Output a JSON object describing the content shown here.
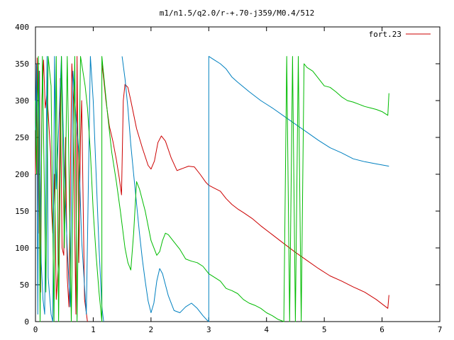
{
  "chart_data": {
    "type": "line",
    "title": "m1/n1.5/q2.0/r-+.70-j359/M0.4/512",
    "xlabel": "",
    "ylabel": "",
    "xlim": [
      0,
      7
    ],
    "ylim": [
      0,
      400
    ],
    "x_ticks": [
      "0",
      "1",
      "2",
      "3",
      "4",
      "5",
      "6",
      "7"
    ],
    "y_ticks": [
      "0",
      "50",
      "100",
      "150",
      "200",
      "250",
      "300",
      "350",
      "400"
    ],
    "grid": false,
    "legend_position": "top-right",
    "series": [
      {
        "name": "fort.23",
        "color": "#cc0000",
        "points": [
          [
            0.0,
            200
          ],
          [
            0.03,
            358
          ],
          [
            0.05,
            120
          ],
          [
            0.07,
            340
          ],
          [
            0.09,
            40
          ],
          [
            0.11,
            300
          ],
          [
            0.14,
            355
          ],
          [
            0.17,
            290
          ],
          [
            0.2,
            310
          ],
          [
            0.23,
            270
          ],
          [
            0.26,
            230
          ],
          [
            0.28,
            150
          ],
          [
            0.3,
            120
          ],
          [
            0.33,
            200
          ],
          [
            0.36,
            30
          ],
          [
            0.4,
            80
          ],
          [
            0.43,
            330
          ],
          [
            0.46,
            100
          ],
          [
            0.49,
            90
          ],
          [
            0.52,
            250
          ],
          [
            0.55,
            60
          ],
          [
            0.58,
            20
          ],
          [
            0.61,
            240
          ],
          [
            0.63,
            350
          ],
          [
            0.66,
            300
          ],
          [
            0.68,
            120
          ],
          [
            0.7,
            10
          ],
          [
            0.72,
            360
          ],
          [
            0.75,
            80
          ],
          [
            0.78,
            250
          ],
          [
            0.8,
            300
          ],
          [
            0.85,
            30
          ],
          [
            0.9,
            0
          ]
        ]
      },
      {
        "name": "",
        "color": "#cc0000",
        "points": [
          [
            1.15,
            350
          ],
          [
            1.18,
            330
          ],
          [
            1.22,
            300
          ],
          [
            1.28,
            265
          ],
          [
            1.34,
            245
          ],
          [
            1.4,
            220
          ],
          [
            1.45,
            195
          ],
          [
            1.49,
            172
          ],
          [
            1.52,
            300
          ],
          [
            1.55,
            322
          ],
          [
            1.6,
            318
          ],
          [
            1.65,
            300
          ],
          [
            1.75,
            262
          ],
          [
            1.85,
            236
          ],
          [
            1.95,
            212
          ],
          [
            2.0,
            207
          ],
          [
            2.06,
            218
          ],
          [
            2.12,
            243
          ],
          [
            2.18,
            252
          ],
          [
            2.25,
            245
          ],
          [
            2.35,
            222
          ],
          [
            2.45,
            205
          ],
          [
            2.55,
            208
          ],
          [
            2.65,
            211
          ],
          [
            2.75,
            210
          ],
          [
            2.85,
            200
          ],
          [
            2.95,
            189
          ],
          [
            3.0,
            185
          ],
          [
            3.1,
            181
          ],
          [
            3.2,
            177
          ],
          [
            3.3,
            167
          ],
          [
            3.4,
            159
          ],
          [
            3.5,
            153
          ],
          [
            3.6,
            148
          ],
          [
            3.75,
            140
          ],
          [
            3.9,
            130
          ],
          [
            4.1,
            118
          ],
          [
            4.3,
            106
          ],
          [
            4.5,
            94
          ],
          [
            4.7,
            83
          ],
          [
            4.9,
            72
          ],
          [
            5.1,
            62
          ],
          [
            5.3,
            55
          ],
          [
            5.5,
            47
          ],
          [
            5.7,
            40
          ],
          [
            5.9,
            30
          ],
          [
            6.1,
            18
          ],
          [
            6.12,
            36
          ]
        ]
      },
      {
        "name": "",
        "color": "#0080c0",
        "points": [
          [
            0.0,
            260
          ],
          [
            0.02,
            350
          ],
          [
            0.04,
            10
          ],
          [
            0.06,
            340
          ],
          [
            0.08,
            200
          ],
          [
            0.1,
            80
          ],
          [
            0.13,
            30
          ],
          [
            0.16,
            10
          ],
          [
            0.2,
            360
          ],
          [
            0.22,
            60
          ],
          [
            0.27,
            10
          ],
          [
            0.3,
            0
          ],
          [
            0.33,
            360
          ],
          [
            0.36,
            180
          ],
          [
            0.4,
            260
          ],
          [
            0.45,
            360
          ],
          [
            0.5,
            200
          ],
          [
            0.55,
            100
          ],
          [
            0.6,
            20
          ],
          [
            0.65,
            340
          ],
          [
            0.7,
            280
          ],
          [
            0.75,
            230
          ],
          [
            0.8,
            110
          ],
          [
            0.88,
            10
          ],
          [
            0.95,
            360
          ],
          [
            1.0,
            300
          ],
          [
            1.05,
            200
          ],
          [
            1.1,
            100
          ],
          [
            1.15,
            20
          ],
          [
            1.18,
            0
          ]
        ]
      },
      {
        "name": "",
        "color": "#0080c0",
        "points": [
          [
            1.5,
            360
          ],
          [
            1.55,
            330
          ],
          [
            1.6,
            290
          ],
          [
            1.65,
            240
          ],
          [
            1.7,
            200
          ],
          [
            1.75,
            160
          ],
          [
            1.8,
            120
          ],
          [
            1.85,
            85
          ],
          [
            1.9,
            55
          ],
          [
            1.95,
            28
          ],
          [
            2.0,
            12
          ],
          [
            2.05,
            25
          ],
          [
            2.1,
            55
          ],
          [
            2.15,
            72
          ],
          [
            2.2,
            65
          ],
          [
            2.3,
            35
          ],
          [
            2.4,
            15
          ],
          [
            2.5,
            12
          ],
          [
            2.6,
            20
          ],
          [
            2.7,
            25
          ],
          [
            2.8,
            18
          ],
          [
            2.9,
            8
          ],
          [
            2.97,
            2
          ],
          [
            3.0,
            0
          ],
          [
            3.0,
            360
          ],
          [
            3.1,
            355
          ],
          [
            3.2,
            350
          ],
          [
            3.3,
            343
          ],
          [
            3.4,
            332
          ],
          [
            3.5,
            325
          ],
          [
            3.7,
            312
          ],
          [
            3.9,
            300
          ],
          [
            4.1,
            290
          ],
          [
            4.3,
            279
          ],
          [
            4.5,
            268
          ],
          [
            4.7,
            257
          ],
          [
            4.9,
            246
          ],
          [
            5.1,
            236
          ],
          [
            5.3,
            229
          ],
          [
            5.5,
            221
          ],
          [
            5.7,
            217
          ],
          [
            5.9,
            214
          ],
          [
            6.12,
            211
          ]
        ]
      },
      {
        "name": "",
        "color": "#00bb00",
        "points": [
          [
            0.0,
            300
          ],
          [
            0.02,
            200
          ],
          [
            0.05,
            360
          ],
          [
            0.08,
            0
          ],
          [
            0.12,
            360
          ],
          [
            0.18,
            40
          ],
          [
            0.22,
            360
          ],
          [
            0.27,
            320
          ],
          [
            0.32,
            0
          ],
          [
            0.36,
            360
          ],
          [
            0.4,
            0
          ],
          [
            0.45,
            360
          ],
          [
            0.5,
            100
          ],
          [
            0.55,
            360
          ],
          [
            0.62,
            0
          ],
          [
            0.68,
            360
          ],
          [
            0.72,
            0
          ],
          [
            0.78,
            360
          ],
          [
            0.82,
            340
          ],
          [
            0.86,
            320
          ],
          [
            0.9,
            290
          ],
          [
            0.95,
            230
          ],
          [
            1.0,
            150
          ],
          [
            1.05,
            90
          ],
          [
            1.1,
            40
          ],
          [
            1.15,
            0
          ],
          [
            1.15,
            360
          ],
          [
            1.2,
            320
          ],
          [
            1.25,
            280
          ],
          [
            1.32,
            230
          ],
          [
            1.4,
            190
          ],
          [
            1.47,
            150
          ],
          [
            1.55,
            100
          ],
          [
            1.6,
            80
          ],
          [
            1.65,
            70
          ],
          [
            1.7,
            120
          ],
          [
            1.75,
            190
          ],
          [
            1.8,
            180
          ],
          [
            1.9,
            150
          ],
          [
            2.0,
            110
          ],
          [
            2.1,
            90
          ],
          [
            2.15,
            95
          ],
          [
            2.2,
            110
          ],
          [
            2.25,
            120
          ],
          [
            2.3,
            118
          ],
          [
            2.4,
            108
          ],
          [
            2.5,
            98
          ],
          [
            2.6,
            85
          ],
          [
            2.7,
            82
          ],
          [
            2.8,
            80
          ],
          [
            2.9,
            75
          ],
          [
            3.0,
            65
          ],
          [
            3.1,
            60
          ],
          [
            3.2,
            55
          ],
          [
            3.3,
            45
          ],
          [
            3.4,
            42
          ],
          [
            3.5,
            38
          ],
          [
            3.6,
            30
          ],
          [
            3.7,
            25
          ],
          [
            3.8,
            22
          ],
          [
            3.9,
            18
          ],
          [
            4.0,
            12
          ],
          [
            4.1,
            8
          ],
          [
            4.2,
            3
          ],
          [
            4.3,
            0
          ],
          [
            4.35,
            360
          ],
          [
            4.4,
            0
          ],
          [
            4.45,
            360
          ],
          [
            4.5,
            0
          ],
          [
            4.55,
            360
          ],
          [
            4.6,
            0
          ],
          [
            4.65,
            350
          ],
          [
            4.7,
            345
          ],
          [
            4.8,
            340
          ],
          [
            4.9,
            330
          ],
          [
            5.0,
            320
          ],
          [
            5.1,
            318
          ],
          [
            5.2,
            312
          ],
          [
            5.3,
            305
          ],
          [
            5.4,
            300
          ],
          [
            5.5,
            298
          ],
          [
            5.6,
            295
          ],
          [
            5.7,
            292
          ],
          [
            5.8,
            290
          ],
          [
            5.9,
            288
          ],
          [
            6.0,
            285
          ],
          [
            6.1,
            280
          ],
          [
            6.12,
            310
          ]
        ]
      }
    ]
  }
}
